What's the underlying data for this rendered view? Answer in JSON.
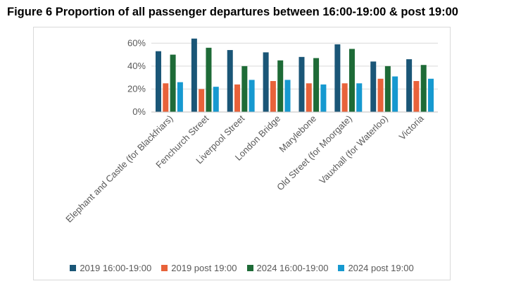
{
  "title": "Figure 6 Proportion of all passenger departures between 16:00-19:00 & post 19:00",
  "chart_data": {
    "type": "bar",
    "categories": [
      "Elephant and Castle (for Blackfriars)",
      "Fenchurch Street",
      "Liverpool Street",
      "London Bridge",
      "Marylebone",
      "Old Street (for Moorgate)",
      "Vauxhall (for Waterloo)",
      "Victoria"
    ],
    "series": [
      {
        "name": "2019 16:00-19:00",
        "color": "#1a5677",
        "values": [
          53,
          64,
          54,
          52,
          48,
          59,
          44,
          46
        ]
      },
      {
        "name": "2019 post 19:00",
        "color": "#e8623a",
        "values": [
          25,
          20,
          24,
          27,
          25,
          25,
          29,
          27
        ]
      },
      {
        "name": "2024 16:00-19:00",
        "color": "#1e6b37",
        "values": [
          50,
          56,
          40,
          45,
          47,
          55,
          40,
          41
        ]
      },
      {
        "name": "2024 post 19:00",
        "color": "#1699d0",
        "values": [
          26,
          22,
          28,
          28,
          24,
          25,
          31,
          29
        ]
      }
    ],
    "yticks": [
      "0%",
      "20%",
      "40%",
      "60%"
    ],
    "ylim": [
      0,
      70
    ],
    "grid": true,
    "legend_position": "bottom"
  }
}
